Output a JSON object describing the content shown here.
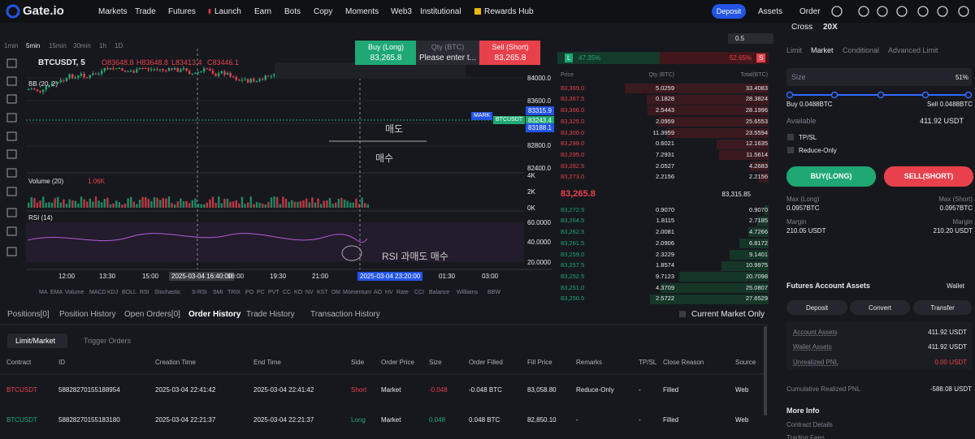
{
  "nav": {
    "logo": "Gate.io",
    "items": [
      "Markets",
      "Trade",
      "Futures",
      "Launch",
      "Earn",
      "Bots",
      "Copy",
      "Moments",
      "Web3",
      "Institutional",
      "Rewards Hub"
    ],
    "deposit": "Deposit",
    "assets": "Assets",
    "order": "Order"
  },
  "chart": {
    "timeframes": [
      "1min",
      "5min",
      "15min",
      "30min",
      "1h",
      "1D"
    ],
    "symbol": "BTCUSDT, 5",
    "ohlc": [
      "O83648.8",
      "H83648.8",
      "L83413.4",
      "C83446.1"
    ],
    "bb": "BB (20, 2)",
    "font_size": "20",
    "quick_trade": {
      "buy": "Buy (Long)",
      "buy_price": "83,265.8",
      "qty": "Qty (BTC)",
      "qty_placeholder": "Please enter t...",
      "sell": "Sell (Short)",
      "sell_price": "83,265.8"
    },
    "price_axis": [
      "84000.0",
      "83600.0",
      "83200.0",
      "82800.0",
      "82400.0"
    ],
    "price_markers": [
      "83315.9",
      "83243.4",
      "83188.1"
    ],
    "mark_label": "MARK",
    "symbol_tag": "BTCUSDT",
    "volume_label": "Volume (20)",
    "volume_value": "1.06K",
    "volume_axis": [
      "4K",
      "2K",
      "0K"
    ],
    "rsi_label": "RSI (14)",
    "rsi_axis": [
      "60.0000",
      "40.0000",
      "20.0000"
    ],
    "annotations": [
      "매도",
      "매수",
      "RSI 과매도 매수"
    ],
    "time_axis": [
      "12:00",
      "13:30",
      "15:00",
      "2025-03-04 16:40:00",
      "18:00",
      "19:30",
      "21:00",
      "2025-03-04 23:20:00",
      "01:30",
      "03:00"
    ],
    "indicators": [
      "MA",
      "EMA",
      "Volume",
      "MACD",
      "KDJ",
      "BOLL",
      "RSI",
      "Stochastic",
      "S-RSI",
      "SMI",
      "TRIX",
      "PO",
      "PC",
      "PVT",
      "CC",
      "KO",
      "NV",
      "KST",
      "DM",
      "Momentum",
      "AO",
      "HV",
      "Rate",
      "CCI",
      "Balance",
      "Williams",
      "BBW"
    ]
  },
  "order_book": {
    "precision": "0.5",
    "long_tag": "L",
    "long_pct": "47.35%",
    "short_pct": "52.65%",
    "short_tag": "S",
    "headers": [
      "Price",
      "Qty (BTC)",
      "Total(BTC)"
    ],
    "asks": [
      [
        "83,369.0",
        "5.0259",
        "33.4083"
      ],
      [
        "83,367.5",
        "0.1828",
        "28.3824"
      ],
      [
        "83,366.0",
        "2.5443",
        "28.1996"
      ],
      [
        "83,325.0",
        "2.0959",
        "25.6553"
      ],
      [
        "83,300.0",
        "11.3959",
        "23.5594"
      ],
      [
        "83,299.0",
        "0.6021",
        "12.1635"
      ],
      [
        "83,295.0",
        "7.2931",
        "11.5614"
      ],
      [
        "83,282.5",
        "2.0527",
        "4.2683"
      ],
      [
        "83,273.0",
        "2.2156",
        "2.2156"
      ]
    ],
    "last_price": "83,265.8",
    "mark_price": "83,315.85",
    "bids": [
      [
        "83,272.5",
        "0.9070",
        "0.9070"
      ],
      [
        "83,264.5",
        "1.8115",
        "2.7185"
      ],
      [
        "83,262.5",
        "2.0081",
        "4.7266"
      ],
      [
        "83,261.5",
        "2.0906",
        "6.8172"
      ],
      [
        "83,259.0",
        "2.3229",
        "9.1401"
      ],
      [
        "83,257.5",
        "1.8574",
        "10.9975"
      ],
      [
        "83,252.5",
        "9.7123",
        "20.7098"
      ],
      [
        "83,251.0",
        "4.3709",
        "25.0807"
      ],
      [
        "83,250.5",
        "2.5722",
        "27.6529"
      ]
    ]
  },
  "trade": {
    "margin_mode": "Cross",
    "leverage": "20X",
    "order_types": [
      "Limit",
      "Market",
      "Conditional",
      "Advanced Limit"
    ],
    "size_label": "Size",
    "size_pct": "51%",
    "buy_size": "Buy 0.0488BTC",
    "sell_size": "Sell 0.0488BTC",
    "available_label": "Available",
    "available": "411.92 USDT",
    "tpsl": "TP/SL",
    "reduce_only": "Reduce-Only",
    "buy_button": "BUY(LONG)",
    "sell_button": "SELL(SHORT)",
    "max_long_label": "Max (Long)",
    "max_long": "0.0957BTC",
    "max_short_label": "Max (Short)",
    "max_short": "0.0957BTC",
    "margin_label": "Margin",
    "margin_long": "210.05 USDT",
    "margin_short": "210.20 USDT"
  },
  "account": {
    "title": "Futures Account Assets",
    "wallet": "Wallet",
    "buttons": [
      "Deposit",
      "Convert",
      "Transfer"
    ],
    "rows": [
      [
        "Account Assets",
        "411.92 USDT"
      ],
      [
        "Wallet Assets",
        "411.92 USDT"
      ],
      [
        "Unrealized PNL",
        "0.00 USDT"
      ]
    ],
    "cumulative_label": "Cumulative Realized PNL",
    "cumulative": "-588.08 USDT",
    "more_info": "More Info",
    "links": [
      "Contract Details",
      "Trading Fees"
    ]
  },
  "orders": {
    "tabs": [
      "Positions[0]",
      "Position History",
      "Open Orders[0]",
      "Order History",
      "Trade History",
      "Transaction History"
    ],
    "current_market_only": "Current Market Only",
    "subtabs": [
      "Limit/Market",
      "Trigger Orders"
    ],
    "headers": [
      "Contract",
      "ID",
      "Creation Time",
      "End Time",
      "Side",
      "Order Price",
      "Size",
      "Order Filled",
      "Fill Price",
      "Remarks",
      "TP/SL",
      "Close Reason",
      "Source"
    ],
    "rows": [
      [
        "BTCUSDT",
        "58828270155188954",
        "2025-03-04 22:41:42",
        "2025-03-04 22:41:42",
        "Short",
        "Market",
        "-0.048",
        "-0.048 BTC",
        "83,058.80",
        "Reduce-Only",
        "-",
        "Filled",
        "Web"
      ],
      [
        "BTCUSDT",
        "58828270155183180",
        "2025-03-04 22:21:37",
        "2025-03-04 22:21:37",
        "Long",
        "Market",
        "0.048",
        "0.048 BTC",
        "82,850.10",
        "-",
        "-",
        "Filled",
        "Web"
      ]
    ]
  }
}
